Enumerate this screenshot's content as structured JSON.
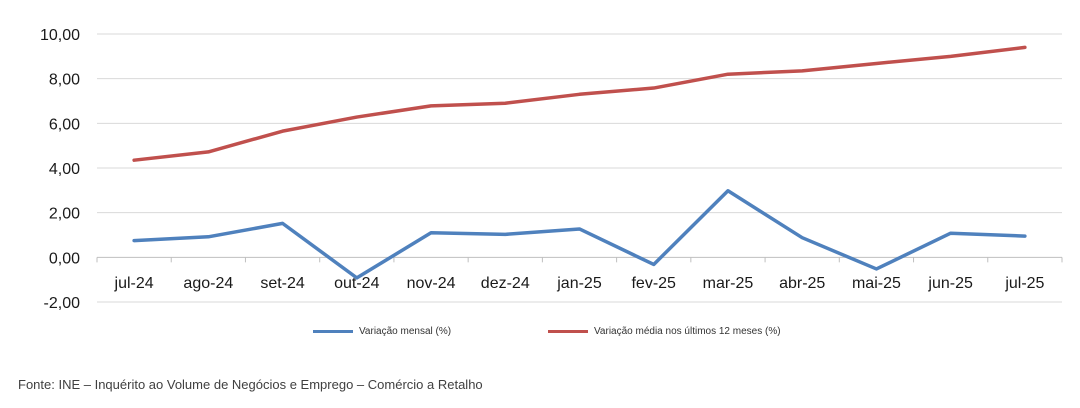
{
  "chart_data": {
    "type": "line",
    "categories": [
      "jul-24",
      "ago-24",
      "set-24",
      "out-24",
      "nov-24",
      "dez-24",
      "jan-25",
      "fev-25",
      "mar-25",
      "abr-25",
      "mai-25",
      "jun-25",
      "jul-25"
    ],
    "series": [
      {
        "name": "Variação mensal (%)",
        "color": "#4f81bd",
        "values": [
          0.75,
          0.92,
          1.52,
          -0.92,
          1.1,
          1.03,
          1.27,
          -0.32,
          2.98,
          0.88,
          -0.52,
          1.08,
          0.95
        ]
      },
      {
        "name": "Variação média nos últimos 12 meses (%)",
        "color": "#c0504d",
        "values": [
          4.35,
          4.72,
          5.65,
          6.28,
          6.78,
          6.9,
          7.3,
          7.58,
          8.2,
          8.35,
          8.68,
          9.0,
          9.4
        ]
      }
    ],
    "y_ticks": [
      "-2,00",
      "0,00",
      "2,00",
      "4,00",
      "6,00",
      "8,00",
      "10,00"
    ],
    "ylim": [
      -2,
      10
    ],
    "grid": true,
    "legend_position": "bottom"
  },
  "source": "Fonte: INE – Inquérito ao Volume de Negócios e Emprego – Comércio a Retalho"
}
